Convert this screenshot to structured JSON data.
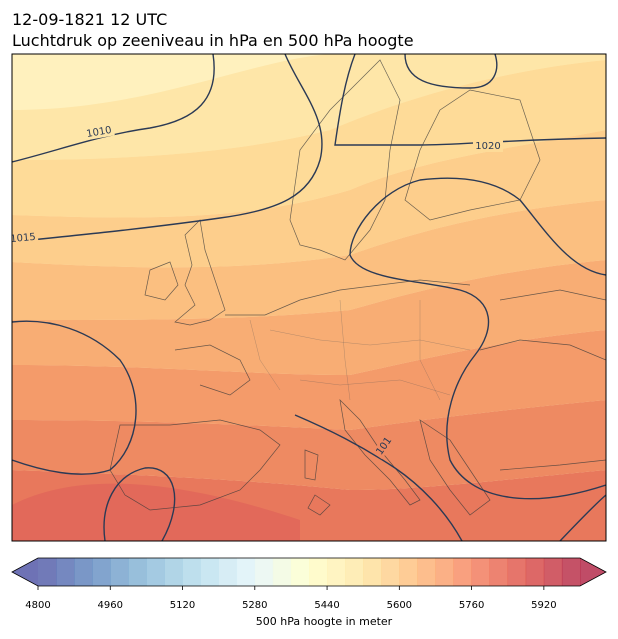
{
  "header": {
    "title_line1": "12-09-1821 12 UTC",
    "title_line2": "Luchtdruk op zeeniveau in hPa en 500 hPa hoogte"
  },
  "isobar_labels": [
    "1010",
    "1020",
    "1015",
    "101"
  ],
  "colorbar": {
    "label": "500 hPa hoogte in meter",
    "levels": [
      4800,
      4840,
      4880,
      4920,
      4960,
      5000,
      5040,
      5080,
      5120,
      5160,
      5200,
      5240,
      5280,
      5320,
      5360,
      5400,
      5440,
      5480,
      5520,
      5560,
      5600,
      5640,
      5680,
      5720,
      5760,
      5800,
      5840,
      5880,
      5920,
      5960,
      6000
    ],
    "ticks": [
      4800,
      4960,
      5120,
      5280,
      5440,
      5600,
      5760,
      5920
    ],
    "colormap": [
      "#313695",
      "#4575b4",
      "#74add1",
      "#abd9e9",
      "#e0f3f8",
      "#ffffbf",
      "#fee090",
      "#fdae61",
      "#f46d43",
      "#d73027",
      "#a50026"
    ],
    "opacity": 0.7
  }
}
